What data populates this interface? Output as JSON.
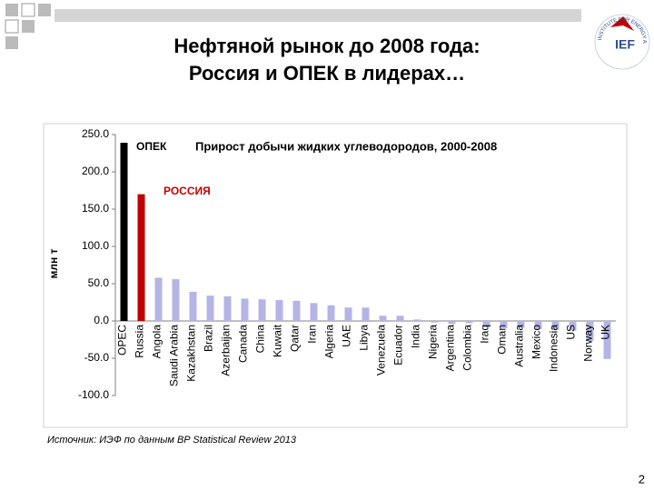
{
  "header": {
    "title_lines": [
      "Нефтяной рынок до 2008 года:",
      "Россия и ОПЕК в лидерах…"
    ],
    "logo": {
      "text": "IEF",
      "ring": "INSTITUTE FOR ENERGY AND FINANCE"
    }
  },
  "chart_data": {
    "type": "bar",
    "y_label": "млн т",
    "annotations": [
      "ОПЕК",
      "Прирост добычи жидких углеводородов, 2000-2008",
      "РОССИЯ"
    ],
    "categories": [
      "OPEC",
      "Russia",
      "Angola",
      "Saudi Arabia",
      "Kazakhstan",
      "Brazil",
      "Azerbaijan",
      "Canada",
      "China",
      "Kuwait",
      "Qatar",
      "Iran",
      "Algeria",
      "UAE",
      "Libya",
      "Venezuela",
      "Ecuador",
      "India",
      "Nigeria",
      "Argentina",
      "Colombia",
      "Iraq",
      "Oman",
      "Australia",
      "Mexico",
      "Indonesia",
      "US",
      "Norway",
      "UK"
    ],
    "values": [
      239,
      170,
      58,
      56,
      39,
      34,
      33,
      30,
      29,
      28,
      27,
      24,
      21,
      18,
      18,
      7,
      7,
      2,
      -2,
      -4,
      -3,
      -8,
      -10,
      -9,
      -11,
      -12,
      -13,
      -27,
      -51
    ],
    "colors": [
      "#000000",
      "#c00000",
      "#b4b4e6",
      "#b4b4e6",
      "#b4b4e6",
      "#b4b4e6",
      "#b4b4e6",
      "#b4b4e6",
      "#b4b4e6",
      "#b4b4e6",
      "#b4b4e6",
      "#b4b4e6",
      "#b4b4e6",
      "#b4b4e6",
      "#b4b4e6",
      "#b4b4e6",
      "#b4b4e6",
      "#b4b4e6",
      "#b4b4e6",
      "#b4b4e6",
      "#b4b4e6",
      "#b4b4e6",
      "#b4b4e6",
      "#b4b4e6",
      "#b4b4e6",
      "#b4b4e6",
      "#b4b4e6",
      "#b4b4e6",
      "#b4b4e6"
    ],
    "ylim": [
      -100,
      250
    ],
    "yticks": [
      {
        "value": -100,
        "label": "-100.0"
      },
      {
        "value": -50,
        "label": "-50.0"
      },
      {
        "value": 0,
        "label": "0.0"
      },
      {
        "value": 50,
        "label": "50.0"
      },
      {
        "value": 100,
        "label": "100.0"
      },
      {
        "value": 150,
        "label": "150.0"
      },
      {
        "value": 200,
        "label": "200.0"
      },
      {
        "value": 250,
        "label": "250.0"
      }
    ]
  },
  "footer": {
    "source": "Источник: ИЭФ по данным BP Statistical Review 2013",
    "page": "2"
  }
}
